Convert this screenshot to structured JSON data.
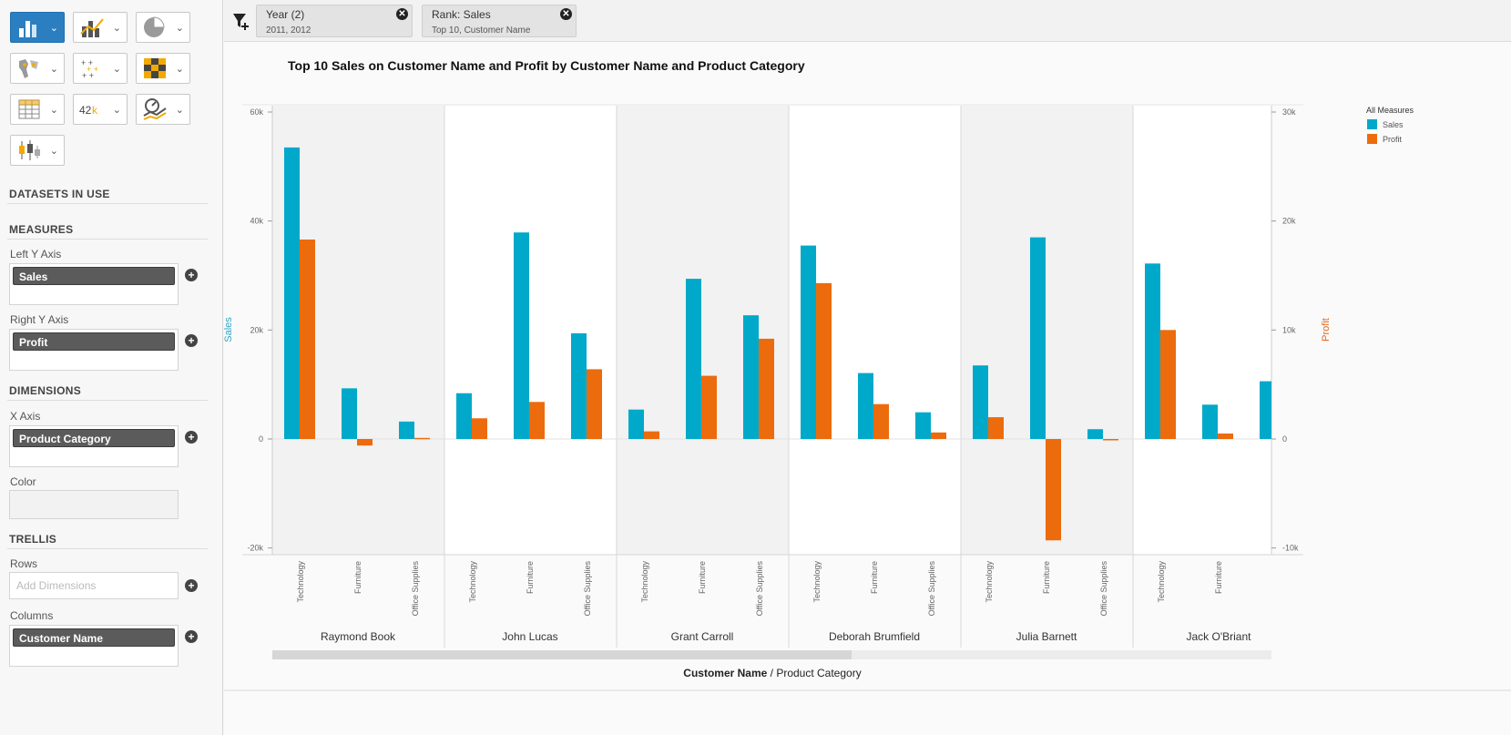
{
  "sidebar": {
    "chart_buttons": [
      {
        "icon": "bar-chart-icon",
        "active": true
      },
      {
        "icon": "combo-bar-line-icon",
        "active": false
      },
      {
        "icon": "pie-chart-icon",
        "active": false
      },
      {
        "icon": "geo-map-icon",
        "active": false
      },
      {
        "icon": "scatter-plot-icon",
        "active": false
      },
      {
        "icon": "heatmap-icon",
        "active": false
      },
      {
        "icon": "table-icon",
        "active": false
      },
      {
        "icon": "numeric-point-icon",
        "active": false,
        "text": "42k"
      },
      {
        "icon": "gauge-trend-icon",
        "active": false
      },
      {
        "icon": "box-plot-icon",
        "active": false
      }
    ],
    "datasets_heading": "DATASETS IN USE",
    "measures_heading": "MEASURES",
    "left_y_label": "Left Y Axis",
    "left_y_value": "Sales",
    "right_y_label": "Right Y Axis",
    "right_y_value": "Profit",
    "dimensions_heading": "DIMENSIONS",
    "x_axis_label": "X Axis",
    "x_axis_value": "Product Category",
    "color_label": "Color",
    "trellis_heading": "TRELLIS",
    "rows_label": "Rows",
    "rows_placeholder": "Add Dimensions",
    "columns_label": "Columns",
    "columns_value": "Customer Name"
  },
  "filters": [
    {
      "title": "Year (2)",
      "subtitle": "2011, 2012"
    },
    {
      "title": "Rank: Sales",
      "subtitle": "Top 10, Customer Name"
    }
  ],
  "colors": {
    "sales": "#00a9c9",
    "profit": "#ec6b0c",
    "sales_axis": "#2aa6c8",
    "profit_axis": "#e2661a"
  },
  "chart_data": {
    "type": "bar",
    "title": "Top 10 Sales on Customer Name and Profit by Customer Name and Product Category",
    "left_axis": {
      "label": "Sales",
      "range": [
        -20000,
        60000
      ],
      "ticks": [
        "-20k",
        "0",
        "20k",
        "40k",
        "60k"
      ],
      "tick_values": [
        -20000,
        0,
        20000,
        40000,
        60000
      ]
    },
    "right_axis": {
      "label": "Profit",
      "range": [
        -10000,
        30000
      ],
      "ticks": [
        "-10k",
        "0",
        "10k",
        "20k",
        "30k"
      ],
      "tick_values": [
        -10000,
        0,
        10000,
        20000,
        30000
      ]
    },
    "legend": {
      "title": "All Measures",
      "items": [
        "Sales",
        "Profit"
      ],
      "position": "top-right"
    },
    "x_title_bold": "Customer Name",
    "x_title_sep": " / ",
    "x_title_rest": "Product Category",
    "categories": [
      "Technology",
      "Furniture",
      "Office Supplies"
    ],
    "groups": [
      {
        "name": "Raymond Book",
        "sales": [
          53500,
          9300,
          3200
        ],
        "profit": [
          18300,
          -600,
          100
        ]
      },
      {
        "name": "John Lucas",
        "sales": [
          8400,
          37900,
          19400
        ],
        "profit": [
          1900,
          3400,
          6400
        ]
      },
      {
        "name": "Grant Carroll",
        "sales": [
          5400,
          29400,
          22700
        ],
        "profit": [
          700,
          5800,
          9200
        ]
      },
      {
        "name": "Deborah Brumfield",
        "sales": [
          35500,
          12100,
          4900
        ],
        "profit": [
          14300,
          3200,
          600
        ]
      },
      {
        "name": "Julia Barnett",
        "sales": [
          13500,
          37000,
          1800
        ],
        "profit": [
          2000,
          -9300,
          -100
        ]
      },
      {
        "name": "Jack O'Briant",
        "sales": [
          32200,
          6300,
          10600
        ],
        "profit": [
          10000,
          500,
          null
        ]
      }
    ]
  }
}
